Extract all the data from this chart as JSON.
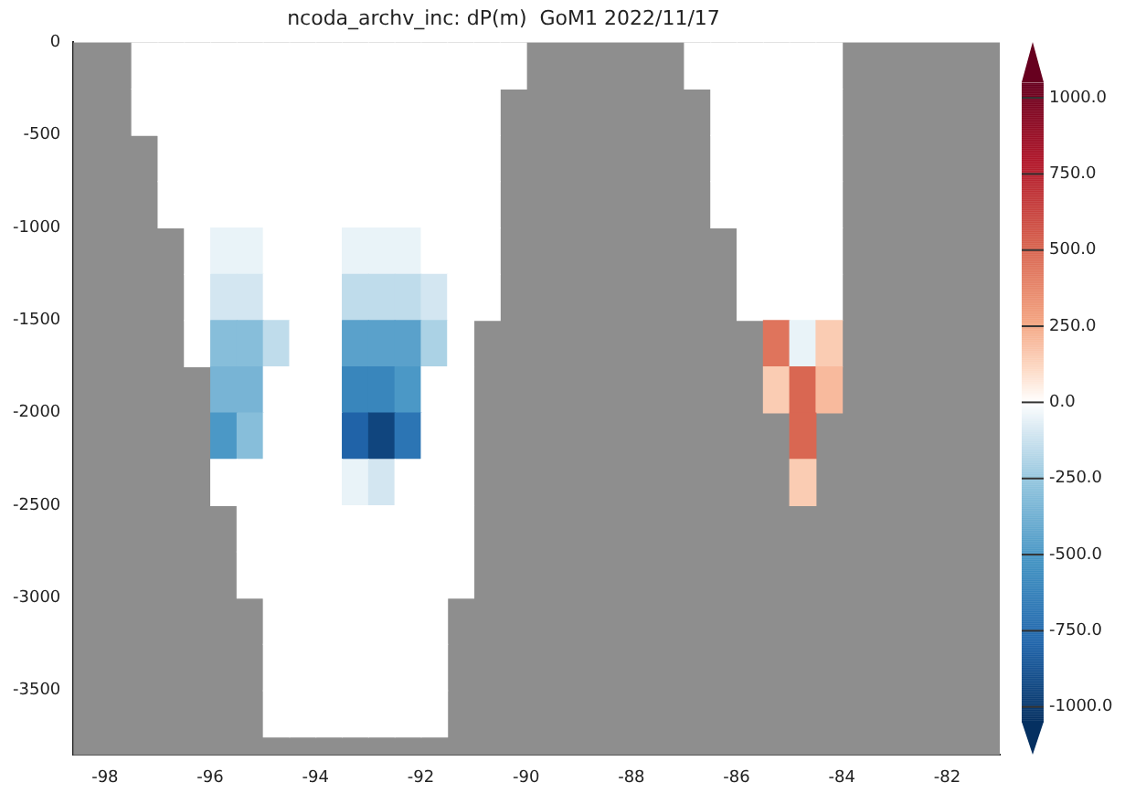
{
  "chart_data": {
    "type": "heatmap",
    "title": "ncoda_archv_inc: dP(m)  GoM1 2022/11/17",
    "x": [
      -98.25,
      -97.75,
      -97.25,
      -96.75,
      -96.25,
      -95.75,
      -95.25,
      -94.75,
      -94.25,
      -93.75,
      -93.25,
      -92.75,
      -92.25,
      -91.75,
      -91.25,
      -90.75,
      -90.25,
      -89.75,
      -89.25,
      -88.75,
      -88.25,
      -87.75,
      -87.25,
      -86.75,
      -86.25,
      -85.75,
      -85.25,
      -84.75,
      -84.25,
      -83.75,
      -83.25,
      -82.75,
      -82.25,
      -81.75,
      -81.25
    ],
    "y": [
      -125,
      -375,
      -625,
      -875,
      -1125,
      -1375,
      -1625,
      -1875,
      -2125,
      -2375,
      -2625,
      -2875,
      -3125,
      -3375,
      -3625
    ],
    "cells": [
      [
        null,
        null,
        0,
        0,
        0,
        0,
        0,
        0,
        0,
        0,
        0,
        0,
        0,
        0,
        0,
        0,
        0,
        null,
        null,
        null,
        null,
        null,
        null,
        0,
        0,
        0,
        0,
        0,
        0,
        null,
        null,
        null,
        null,
        null,
        null
      ],
      [
        null,
        null,
        0,
        0,
        0,
        0,
        0,
        0,
        0,
        0,
        0,
        0,
        0,
        0,
        0,
        0,
        null,
        null,
        null,
        null,
        null,
        null,
        null,
        null,
        0,
        0,
        0,
        0,
        0,
        null,
        null,
        null,
        null,
        null,
        null
      ],
      [
        null,
        null,
        null,
        0,
        0,
        0,
        0,
        0,
        0,
        0,
        0,
        0,
        0,
        0,
        0,
        0,
        null,
        null,
        null,
        null,
        null,
        null,
        null,
        null,
        0,
        0,
        0,
        0,
        0,
        null,
        null,
        null,
        null,
        null,
        null
      ],
      [
        null,
        null,
        null,
        0,
        0,
        0,
        0,
        0,
        0,
        0,
        0,
        0,
        0,
        0,
        0,
        0,
        null,
        null,
        null,
        null,
        null,
        null,
        null,
        null,
        0,
        0,
        0,
        0,
        0,
        null,
        null,
        null,
        null,
        null,
        null
      ],
      [
        null,
        null,
        null,
        null,
        0,
        -50,
        -50,
        0,
        0,
        0,
        -50,
        -50,
        -50,
        0,
        0,
        0,
        null,
        null,
        null,
        null,
        null,
        null,
        null,
        null,
        null,
        0,
        0,
        0,
        0,
        null,
        null,
        null,
        null,
        null,
        null
      ],
      [
        null,
        null,
        null,
        null,
        0,
        -100,
        -100,
        0,
        0,
        0,
        -150,
        -150,
        -150,
        -100,
        0,
        0,
        null,
        null,
        null,
        null,
        null,
        null,
        null,
        null,
        null,
        0,
        0,
        0,
        0,
        null,
        null,
        null,
        null,
        null,
        null
      ],
      [
        null,
        null,
        null,
        null,
        0,
        -300,
        -300,
        -150,
        0,
        0,
        -450,
        -450,
        -450,
        -200,
        0,
        null,
        null,
        null,
        null,
        null,
        null,
        null,
        null,
        null,
        null,
        null,
        450,
        -50,
        150,
        null,
        null,
        null,
        null,
        null,
        null
      ],
      [
        null,
        null,
        null,
        null,
        null,
        -350,
        -350,
        0,
        0,
        0,
        -600,
        -600,
        -500,
        0,
        0,
        null,
        null,
        null,
        null,
        null,
        null,
        null,
        null,
        null,
        null,
        null,
        150,
        500,
        200,
        null,
        null,
        null,
        null,
        null,
        null
      ],
      [
        null,
        null,
        null,
        null,
        null,
        -500,
        -300,
        0,
        0,
        0,
        -800,
        -950,
        -700,
        0,
        0,
        null,
        null,
        null,
        null,
        null,
        null,
        null,
        null,
        null,
        null,
        null,
        null,
        500,
        null,
        null,
        null,
        null,
        null,
        null,
        null
      ],
      [
        null,
        null,
        null,
        null,
        null,
        0,
        0,
        0,
        0,
        0,
        -50,
        -100,
        0,
        0,
        0,
        null,
        null,
        null,
        null,
        null,
        null,
        null,
        null,
        null,
        null,
        null,
        null,
        150,
        null,
        null,
        null,
        null,
        null,
        null,
        null
      ],
      [
        null,
        null,
        null,
        null,
        null,
        null,
        0,
        0,
        0,
        0,
        0,
        0,
        0,
        0,
        0,
        null,
        null,
        null,
        null,
        null,
        null,
        null,
        null,
        null,
        null,
        null,
        null,
        null,
        null,
        null,
        null,
        null,
        null,
        null,
        null
      ],
      [
        null,
        null,
        null,
        null,
        null,
        null,
        0,
        0,
        0,
        0,
        0,
        0,
        0,
        0,
        0,
        null,
        null,
        null,
        null,
        null,
        null,
        null,
        null,
        null,
        null,
        null,
        null,
        null,
        null,
        null,
        null,
        null,
        null,
        null,
        null
      ],
      [
        null,
        null,
        null,
        null,
        null,
        null,
        null,
        0,
        0,
        0,
        0,
        0,
        0,
        0,
        null,
        null,
        null,
        null,
        null,
        null,
        null,
        null,
        null,
        null,
        null,
        null,
        null,
        null,
        null,
        null,
        null,
        null,
        null,
        null,
        null
      ],
      [
        null,
        null,
        null,
        null,
        null,
        null,
        null,
        0,
        0,
        0,
        0,
        0,
        0,
        0,
        null,
        null,
        null,
        null,
        null,
        null,
        null,
        null,
        null,
        null,
        null,
        null,
        null,
        null,
        null,
        null,
        null,
        null,
        null,
        null,
        null
      ],
      [
        null,
        null,
        null,
        null,
        null,
        null,
        null,
        0,
        0,
        0,
        0,
        0,
        0,
        0,
        null,
        null,
        null,
        null,
        null,
        null,
        null,
        null,
        null,
        null,
        null,
        null,
        null,
        null,
        null,
        null,
        null,
        null,
        null,
        null,
        null
      ]
    ],
    "xlim": [
      -98.6,
      -81.0
    ],
    "xticks": [
      -98,
      -96,
      -94,
      -92,
      -90,
      -88,
      -86,
      -84,
      -82
    ],
    "ylim": [
      -3850,
      0
    ],
    "yticks": [
      0,
      -500,
      -1000,
      -1500,
      -2000,
      -2500,
      -3000,
      -3500
    ],
    "clim": [
      -1050,
      1050
    ],
    "cticks": [
      {
        "value": 1000,
        "label": "1000.0"
      },
      {
        "value": 750,
        "label": "750.0"
      },
      {
        "value": 500,
        "label": "500.0"
      },
      {
        "value": 250,
        "label": "250.0"
      },
      {
        "value": 0,
        "label": "0.0"
      },
      {
        "value": -250,
        "label": "-250.0"
      },
      {
        "value": -500,
        "label": "-500.0"
      },
      {
        "value": -750,
        "label": "-750.0"
      },
      {
        "value": -1000,
        "label": "-1000.0"
      }
    ]
  }
}
